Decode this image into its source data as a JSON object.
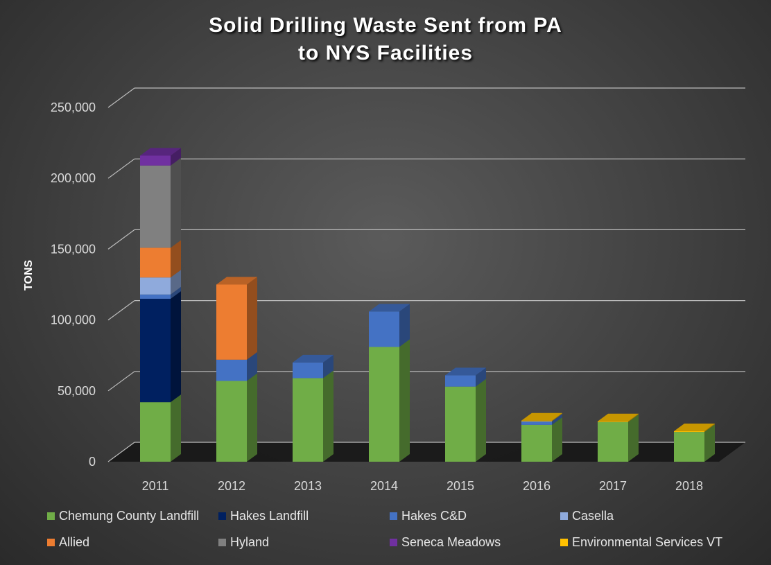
{
  "chart_data": {
    "type": "bar",
    "stacked": true,
    "three_d": true,
    "title": "Solid Drilling Waste Sent from PA to NYS Facilities",
    "title_lines": [
      "Solid Drilling Waste Sent from PA",
      "to NYS Facilities"
    ],
    "xlabel": "",
    "ylabel": "TONS",
    "ylim": [
      0,
      250000
    ],
    "yticks": [
      0,
      50000,
      100000,
      150000,
      200000,
      250000
    ],
    "ytick_labels": [
      "0",
      "50,000",
      "100,000",
      "150,000",
      "200,000",
      "250,000"
    ],
    "grid": true,
    "legend_position": "bottom",
    "categories": [
      "2011",
      "2012",
      "2013",
      "2014",
      "2015",
      "2016",
      "2017",
      "2018"
    ],
    "series": [
      {
        "name": "Chemung County Landfill",
        "color": "#70ad47",
        "values": [
          42000,
          57000,
          59000,
          81000,
          53000,
          26000,
          28000,
          21000
        ]
      },
      {
        "name": "Hakes Landfill",
        "color": "#002060",
        "values": [
          73000,
          0,
          0,
          0,
          0,
          0,
          0,
          0
        ]
      },
      {
        "name": "Hakes C&D",
        "color": "#4472c4",
        "values": [
          3000,
          15000,
          11000,
          25000,
          8000,
          2500,
          0,
          0
        ]
      },
      {
        "name": "Casella",
        "color": "#8faadc",
        "values": [
          12000,
          0,
          0,
          0,
          0,
          0,
          0,
          0
        ]
      },
      {
        "name": "Allied",
        "color": "#ed7d31",
        "values": [
          21000,
          53000,
          0,
          0,
          0,
          0,
          0,
          0
        ]
      },
      {
        "name": "Hyland",
        "color": "#808080",
        "values": [
          58000,
          0,
          0,
          0,
          0,
          0,
          0,
          0
        ]
      },
      {
        "name": "Seneca Meadows",
        "color": "#7030a0",
        "values": [
          7000,
          0,
          0,
          0,
          0,
          0,
          0,
          0
        ]
      },
      {
        "name": "Environmental Services VT",
        "color": "#ffc000",
        "values": [
          0,
          0,
          0,
          0,
          0,
          500,
          500,
          500
        ]
      }
    ]
  }
}
